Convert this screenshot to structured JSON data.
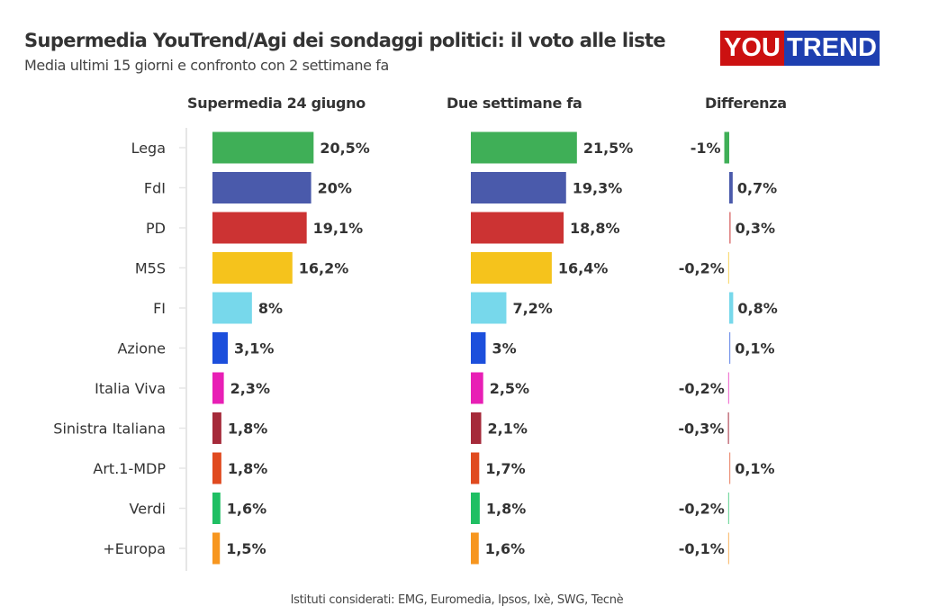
{
  "header": {
    "title": "Supermedia YouTrend/Agi dei sondaggi politici: il voto alle liste",
    "subtitle": "Media ultimi 15 giorni e confronto con 2 settimane fa",
    "logo_text_left": "YOU",
    "logo_text_right": "TREND"
  },
  "footer": {
    "note": "Istituti considerati: EMG, Euromedia, Ipsos, Ixè, SWG, Tecnè"
  },
  "chart_data": {
    "type": "bar",
    "orientation": "horizontal",
    "title": "Supermedia YouTrend/Agi dei sondaggi politici: il voto alle liste",
    "subtitle": "Media ultimi 15 giorni e confronto con 2 settimane fa",
    "categories": [
      "Lega",
      "FdI",
      "PD",
      "M5S",
      "FI",
      "Azione",
      "Italia Viva",
      "Sinistra Italiana",
      "Art.1-MDP",
      "Verdi",
      "+Europa"
    ],
    "colors": [
      "#3faf57",
      "#4a5aab",
      "#cc3333",
      "#f5c31c",
      "#77d8eb",
      "#1c4fdc",
      "#e81fb5",
      "#a52a3a",
      "#e04a1f",
      "#1fbf63",
      "#f7961f"
    ],
    "series": [
      {
        "name": "Supermedia 24 giugno",
        "values": [
          20.5,
          20,
          19.1,
          16.2,
          8,
          3.1,
          2.3,
          1.8,
          1.8,
          1.6,
          1.5
        ],
        "labels": [
          "20,5%",
          "20%",
          "19,1%",
          "16,2%",
          "8%",
          "3,1%",
          "2,3%",
          "1,8%",
          "1,8%",
          "1,6%",
          "1,5%"
        ]
      },
      {
        "name": "Due settimane fa",
        "values": [
          21.5,
          19.3,
          18.8,
          16.4,
          7.2,
          3,
          2.5,
          2.1,
          1.7,
          1.8,
          1.6
        ],
        "labels": [
          "21,5%",
          "19,3%",
          "18,8%",
          "16,4%",
          "7,2%",
          "3%",
          "2,5%",
          "2,1%",
          "1,7%",
          "1,8%",
          "1,6%"
        ]
      },
      {
        "name": "Differenza",
        "values": [
          -1,
          0.7,
          0.3,
          -0.2,
          0.8,
          0.1,
          -0.2,
          -0.3,
          0.1,
          -0.2,
          -0.1
        ],
        "labels": [
          "-1%",
          "0,7%",
          "0,3%",
          "-0,2%",
          "0,8%",
          "0,1%",
          "-0,2%",
          "-0,3%",
          "0,1%",
          "-0,2%",
          "-0,1%"
        ]
      }
    ],
    "xlabel": "",
    "ylabel": "",
    "grid": false,
    "legend": "none"
  }
}
